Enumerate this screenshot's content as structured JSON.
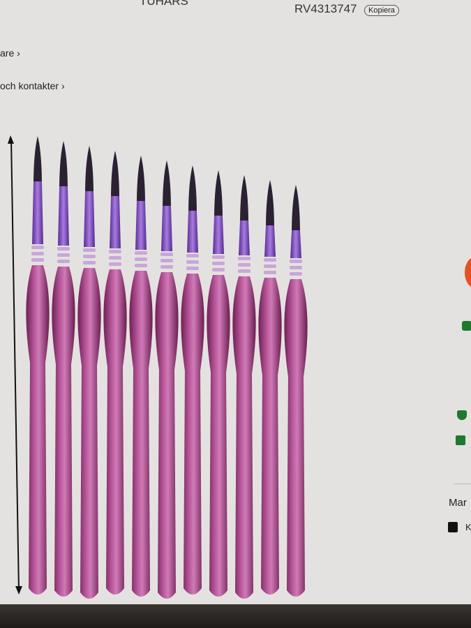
{
  "header": {
    "brand": "TUHARS",
    "sku": "RV4313747",
    "copy_label": "Kopiera"
  },
  "links": [
    {
      "label": "are ›"
    },
    {
      "label": "och kontakter ›"
    }
  ],
  "product_image": {
    "brush_count": 11,
    "brush_color": "#8e2f72",
    "ferrule_color": "#7a45b8",
    "tip_color": "#2a2233"
  },
  "sidebar": {
    "seller_label": "Mar",
    "bag_label": "K"
  },
  "colors": {
    "accent": "#e4531f",
    "icon_green": "#1f7a2e"
  }
}
